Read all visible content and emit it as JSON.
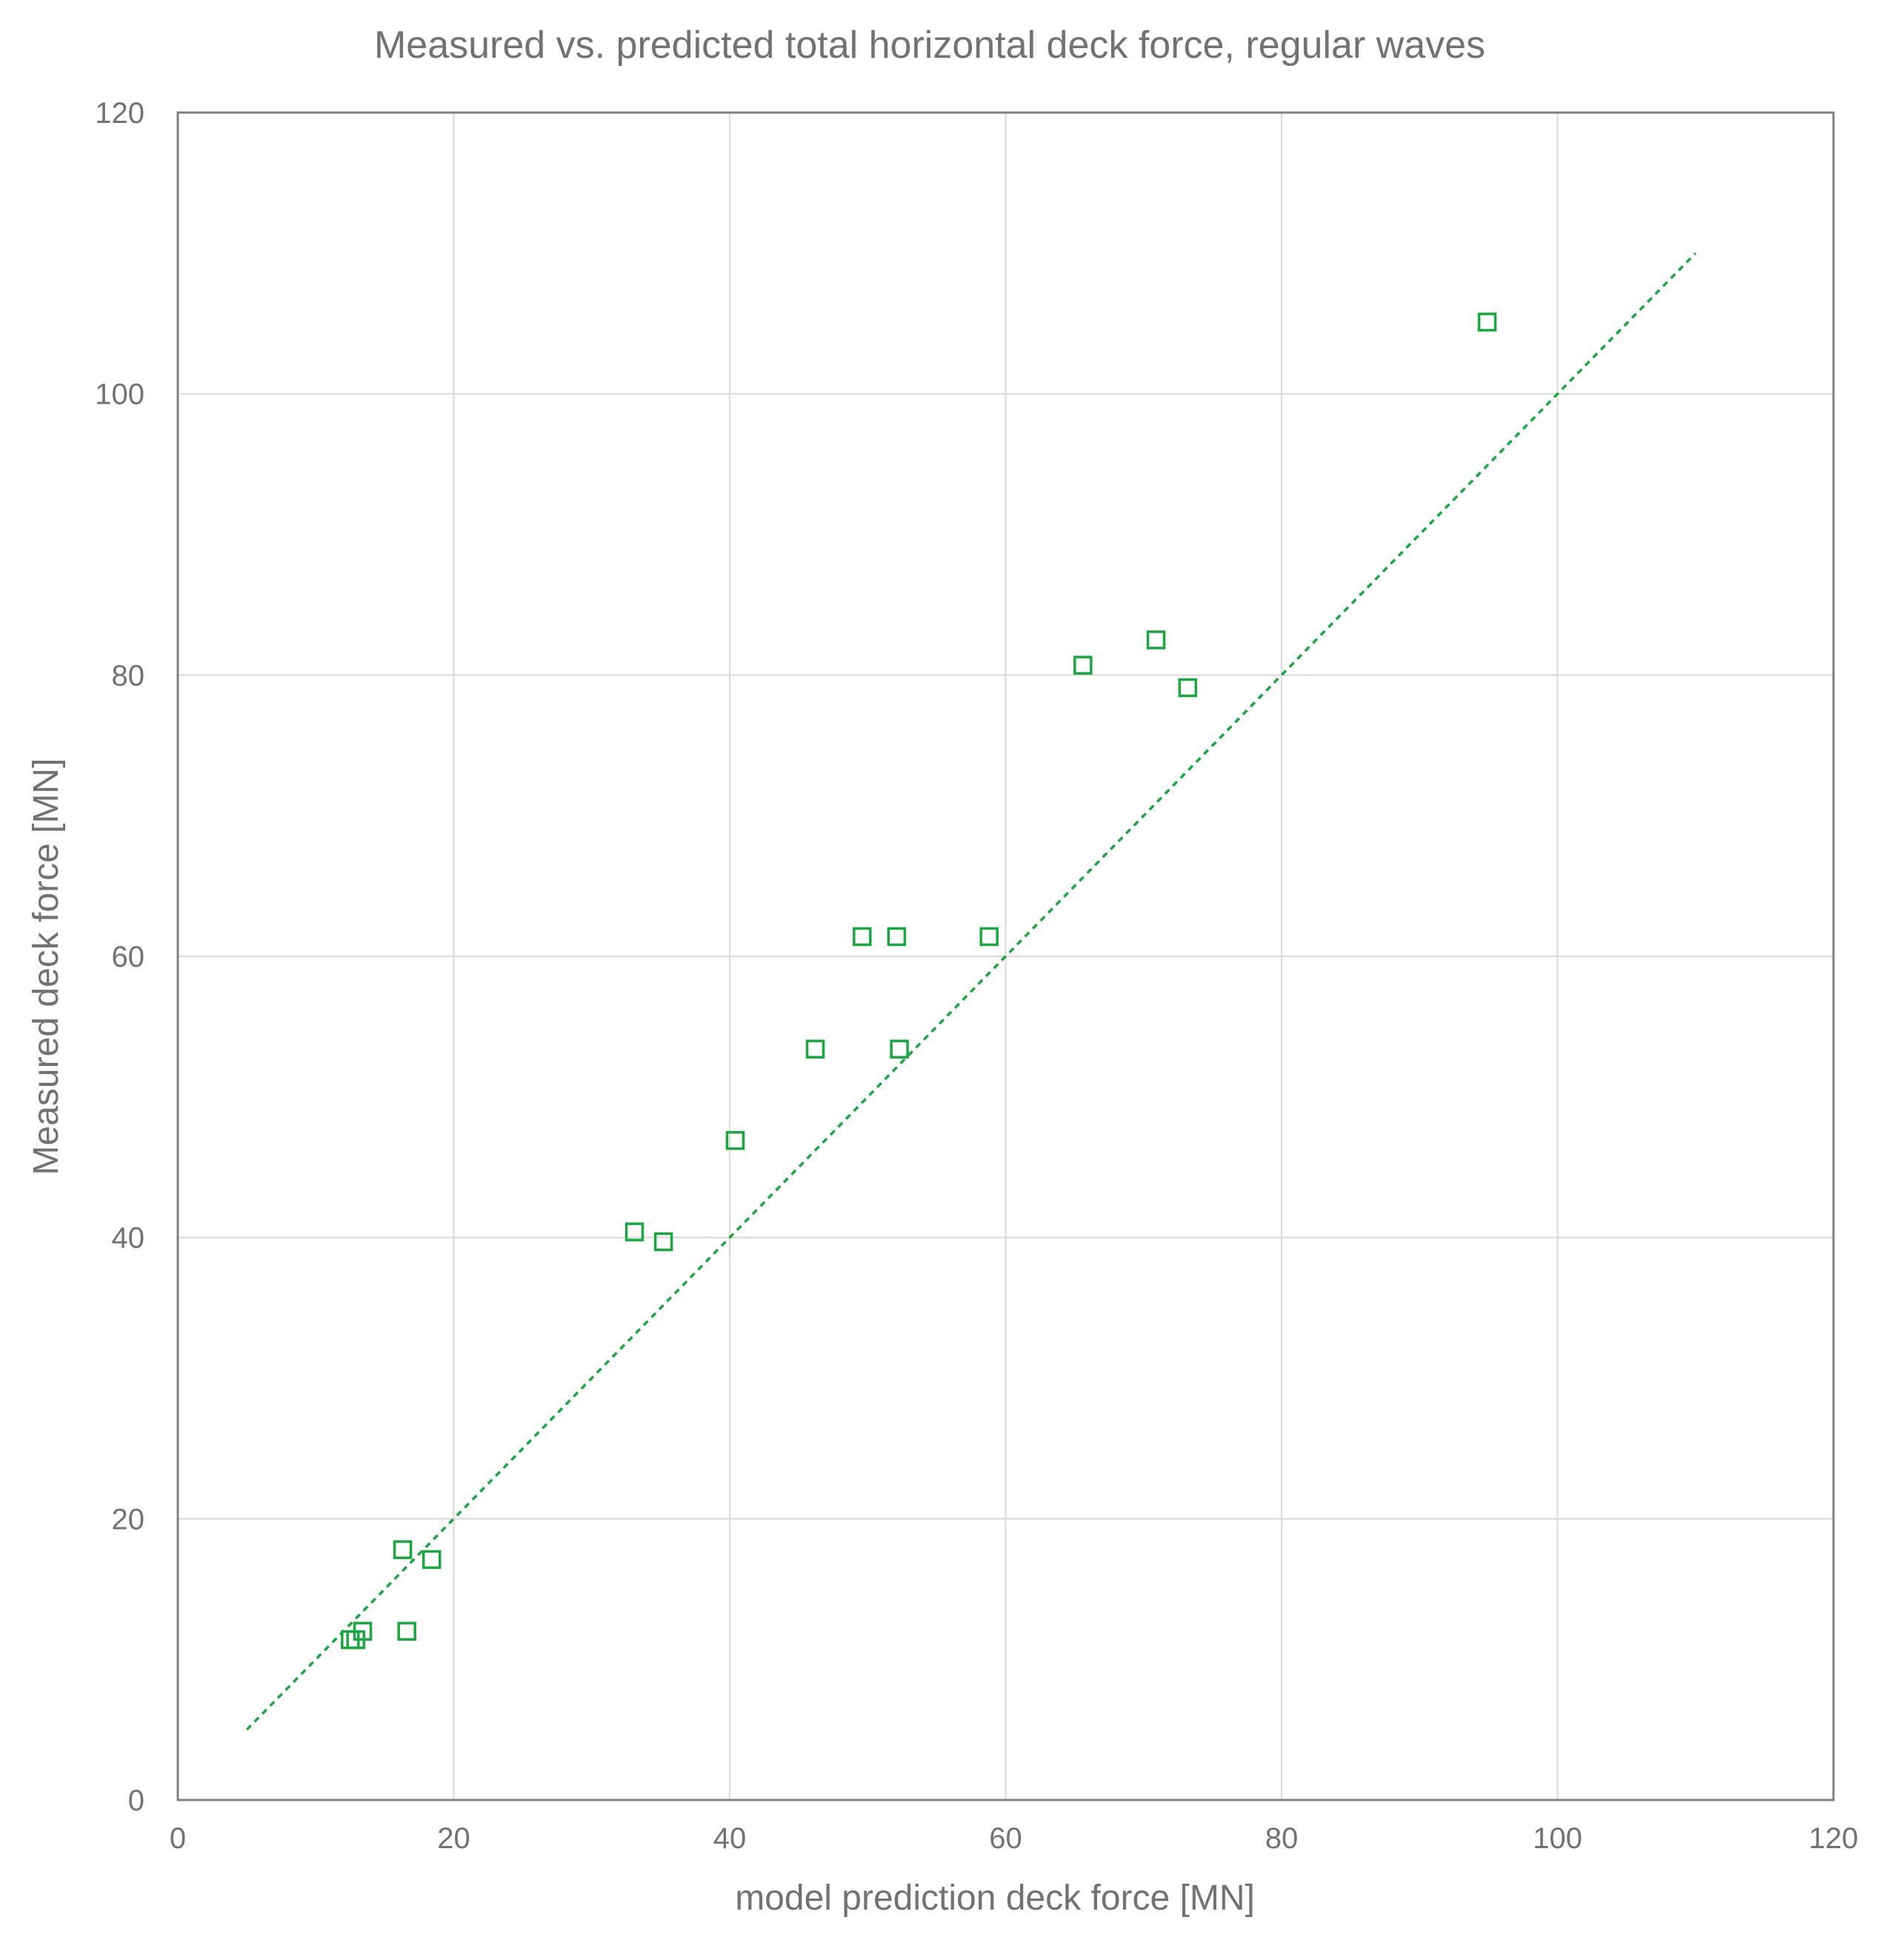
{
  "chart_data": {
    "type": "scatter",
    "title": "Measured vs. predicted total horizontal deck force, regular waves",
    "xlabel": "model prediction deck force [MN]",
    "ylabel": "Measured deck force [MN]",
    "xlim": [
      0,
      120
    ],
    "ylim": [
      0,
      120
    ],
    "x_ticks": [
      "0",
      "20",
      "40",
      "60",
      "80",
      "100",
      "120"
    ],
    "y_ticks": [
      "0",
      "20",
      "40",
      "60",
      "80",
      "100",
      "120"
    ],
    "grid": true,
    "legend": "none",
    "marker": "open-square",
    "colors": {
      "marker": "#1aa640",
      "reference_line": "#1aa640",
      "grid": "#d9d9d9",
      "axis": "#808080",
      "text": "#767171"
    },
    "series": [
      {
        "points": [
          {
            "x": 12.5,
            "y": 11.4
          },
          {
            "x": 12.9,
            "y": 11.4
          },
          {
            "x": 13.4,
            "y": 12.0
          },
          {
            "x": 16.3,
            "y": 17.8
          },
          {
            "x": 16.6,
            "y": 12.0
          },
          {
            "x": 18.4,
            "y": 17.1
          },
          {
            "x": 33.1,
            "y": 40.4
          },
          {
            "x": 35.2,
            "y": 39.7
          },
          {
            "x": 40.4,
            "y": 46.9
          },
          {
            "x": 46.2,
            "y": 53.4
          },
          {
            "x": 49.6,
            "y": 61.4
          },
          {
            "x": 52.1,
            "y": 61.4
          },
          {
            "x": 52.3,
            "y": 53.4
          },
          {
            "x": 58.8,
            "y": 61.4
          },
          {
            "x": 65.6,
            "y": 80.7
          },
          {
            "x": 70.9,
            "y": 82.5
          },
          {
            "x": 73.2,
            "y": 79.1
          },
          {
            "x": 94.9,
            "y": 105.1
          }
        ]
      }
    ],
    "reference_line": {
      "style": "dotted",
      "from": [
        5,
        5
      ],
      "to": [
        110,
        110
      ]
    }
  }
}
